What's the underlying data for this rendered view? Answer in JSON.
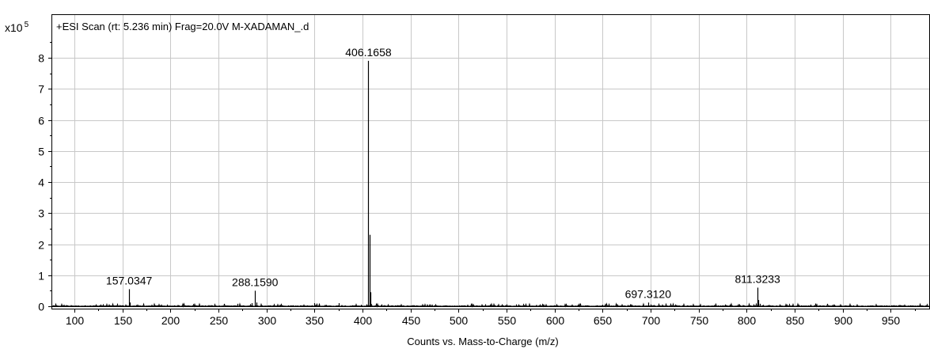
{
  "chart_data": {
    "type": "line",
    "title": "+ESI Scan (rt: 5.236 min) Frag=20.0V M-XADAMAN_.d",
    "xlabel": "Counts vs. Mass-to-Charge (m/z)",
    "ylabel": "",
    "y_multiplier_base": "x10",
    "y_multiplier_exp": "5",
    "xlim": [
      77,
      990
    ],
    "ylim": [
      0,
      8.9
    ],
    "x_ticks": [
      100,
      150,
      200,
      250,
      300,
      350,
      400,
      450,
      500,
      550,
      600,
      650,
      700,
      750,
      800,
      850,
      900,
      950
    ],
    "x_tick_labels": [
      "100",
      "150",
      "200",
      "250",
      "300",
      "350",
      "400",
      "450",
      "500",
      "550",
      "600",
      "650",
      "700",
      "750",
      "800",
      "850",
      "900",
      "950"
    ],
    "y_ticks": [
      0,
      1,
      2,
      3,
      4,
      5,
      6,
      7,
      8
    ],
    "y_tick_labels": [
      "0",
      "1",
      "2",
      "3",
      "4",
      "5",
      "6",
      "7",
      "8"
    ],
    "grid": true,
    "series": [
      {
        "peaks": [
          {
            "x": 157.0347,
            "y": 0.55
          },
          {
            "x": 158.0,
            "y": 0.12
          },
          {
            "x": 270.0,
            "y": 0.08
          },
          {
            "x": 285.0,
            "y": 0.1
          },
          {
            "x": 288.159,
            "y": 0.5
          },
          {
            "x": 290.0,
            "y": 0.12
          },
          {
            "x": 350.0,
            "y": 0.1
          },
          {
            "x": 355.0,
            "y": 0.08
          },
          {
            "x": 375.0,
            "y": 0.1
          },
          {
            "x": 398.0,
            "y": 0.05
          },
          {
            "x": 406.1658,
            "y": 7.9
          },
          {
            "x": 407.17,
            "y": 2.3
          },
          {
            "x": 408.17,
            "y": 0.45
          },
          {
            "x": 420.0,
            "y": 0.06
          },
          {
            "x": 470.0,
            "y": 0.06
          },
          {
            "x": 550.0,
            "y": 0.06
          },
          {
            "x": 560.0,
            "y": 0.06
          },
          {
            "x": 650.0,
            "y": 0.05
          },
          {
            "x": 697.312,
            "y": 0.12
          },
          {
            "x": 700.0,
            "y": 0.06
          },
          {
            "x": 811.3233,
            "y": 0.6
          },
          {
            "x": 812.33,
            "y": 0.2
          },
          {
            "x": 813.33,
            "y": 0.08
          }
        ]
      }
    ],
    "annotations": [
      {
        "x": 157.0347,
        "y": 0.55,
        "text": "157.0347"
      },
      {
        "x": 288.159,
        "y": 0.5,
        "text": "288.1590"
      },
      {
        "x": 406.1658,
        "y": 7.9,
        "text": "406.1658"
      },
      {
        "x": 697.312,
        "y": 0.12,
        "text": "697.3120"
      },
      {
        "x": 811.3233,
        "y": 0.6,
        "text": "811.3233"
      }
    ]
  }
}
